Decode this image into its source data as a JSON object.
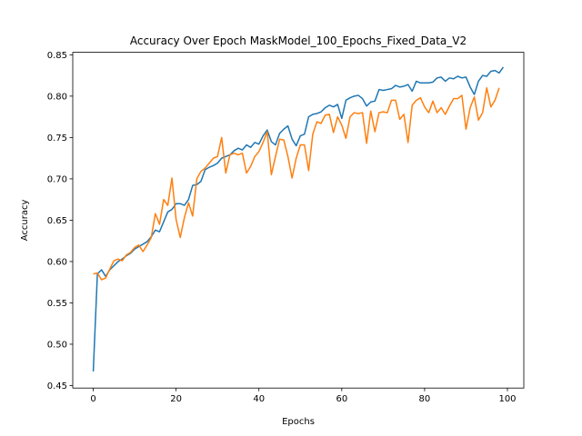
{
  "chart_data": {
    "type": "line",
    "title": "Accuracy Over Epoch MaskModel_100_Epochs_Fixed_Data_V2",
    "xlabel": "Epochs",
    "ylabel": "Accuracy",
    "xlim": [
      -4.95,
      103.95
    ],
    "ylim": [
      0.447,
      0.853
    ],
    "xticks": [
      0,
      20,
      40,
      60,
      80,
      100
    ],
    "yticks": [
      0.45,
      0.5,
      0.55,
      0.6,
      0.65,
      0.7,
      0.75,
      0.8,
      0.85
    ],
    "ytick_labels": [
      "0.45",
      "0.50",
      "0.55",
      "0.60",
      "0.65",
      "0.70",
      "0.75",
      "0.80",
      "0.85"
    ],
    "grid": false,
    "legend": "none",
    "series": [
      {
        "color": "#1f77b4",
        "values": [
          0.467,
          0.585,
          0.59,
          0.582,
          0.59,
          0.595,
          0.6,
          0.603,
          0.607,
          0.61,
          0.615,
          0.618,
          0.621,
          0.624,
          0.63,
          0.638,
          0.636,
          0.648,
          0.66,
          0.663,
          0.67,
          0.67,
          0.668,
          0.675,
          0.692,
          0.693,
          0.697,
          0.711,
          0.714,
          0.716,
          0.719,
          0.725,
          0.727,
          0.729,
          0.734,
          0.737,
          0.735,
          0.741,
          0.738,
          0.744,
          0.742,
          0.752,
          0.759,
          0.745,
          0.741,
          0.755,
          0.76,
          0.764,
          0.748,
          0.74,
          0.752,
          0.754,
          0.775,
          0.778,
          0.779,
          0.781,
          0.786,
          0.789,
          0.787,
          0.79,
          0.773,
          0.795,
          0.798,
          0.8,
          0.801,
          0.797,
          0.788,
          0.793,
          0.794,
          0.808,
          0.807,
          0.808,
          0.809,
          0.813,
          0.811,
          0.812,
          0.814,
          0.806,
          0.818,
          0.816,
          0.816,
          0.816,
          0.817,
          0.822,
          0.823,
          0.818,
          0.822,
          0.821,
          0.824,
          0.822,
          0.823,
          0.811,
          0.802,
          0.818,
          0.825,
          0.824,
          0.83,
          0.831,
          0.828,
          0.835
        ]
      },
      {
        "color": "#ff7f0e",
        "values": [
          0.585,
          0.586,
          0.578,
          0.58,
          0.591,
          0.601,
          0.603,
          0.601,
          0.608,
          0.611,
          0.617,
          0.62,
          0.612,
          0.62,
          0.629,
          0.658,
          0.645,
          0.675,
          0.668,
          0.701,
          0.651,
          0.629,
          0.653,
          0.671,
          0.655,
          0.7,
          0.709,
          0.713,
          0.719,
          0.725,
          0.727,
          0.75,
          0.707,
          0.729,
          0.731,
          0.729,
          0.731,
          0.707,
          0.715,
          0.727,
          0.733,
          0.744,
          0.757,
          0.705,
          0.727,
          0.748,
          0.747,
          0.727,
          0.701,
          0.725,
          0.741,
          0.741,
          0.71,
          0.754,
          0.769,
          0.767,
          0.777,
          0.778,
          0.756,
          0.775,
          0.765,
          0.749,
          0.775,
          0.78,
          0.779,
          0.78,
          0.743,
          0.782,
          0.757,
          0.78,
          0.781,
          0.78,
          0.795,
          0.795,
          0.772,
          0.778,
          0.744,
          0.789,
          0.795,
          0.798,
          0.787,
          0.78,
          0.794,
          0.78,
          0.786,
          0.778,
          0.788,
          0.797,
          0.797,
          0.801,
          0.76,
          0.786,
          0.799,
          0.771,
          0.78,
          0.81,
          0.787,
          0.795,
          0.81
        ]
      }
    ]
  }
}
